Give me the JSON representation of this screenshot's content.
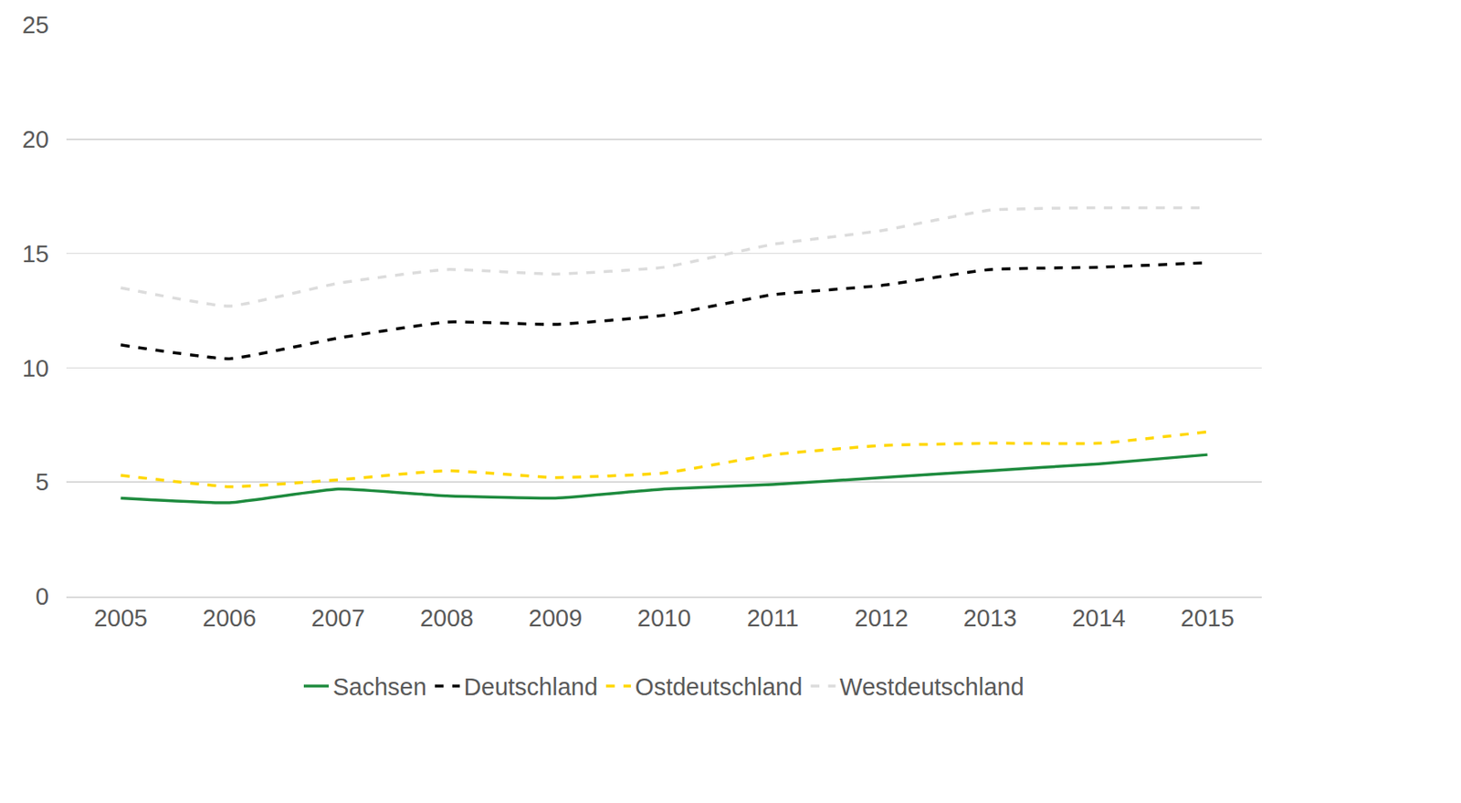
{
  "chart_data": {
    "type": "line",
    "categories": [
      "2005",
      "2006",
      "2007",
      "2008",
      "2009",
      "2010",
      "2011",
      "2012",
      "2013",
      "2014",
      "2015"
    ],
    "series": [
      {
        "name": "Sachsen",
        "color": "#1e8b3e",
        "line_style": "solid",
        "values": [
          4.3,
          4.1,
          4.7,
          4.4,
          4.3,
          4.7,
          4.9,
          5.2,
          5.5,
          5.8,
          6.2
        ]
      },
      {
        "name": "Deutschland",
        "color": "#000000",
        "line_style": "dashed",
        "values": [
          11.0,
          10.4,
          11.3,
          12.0,
          11.9,
          12.3,
          13.2,
          13.6,
          14.3,
          14.4,
          14.6
        ]
      },
      {
        "name": "Ostdeutschland",
        "color": "#ffd700",
        "line_style": "dashed",
        "values": [
          5.3,
          4.8,
          5.1,
          5.5,
          5.2,
          5.4,
          6.2,
          6.6,
          6.7,
          6.7,
          7.2
        ]
      },
      {
        "name": "Westdeutschland",
        "color": "#dcdcdc",
        "line_style": "dashed",
        "values": [
          13.5,
          12.7,
          13.7,
          14.3,
          14.1,
          14.4,
          15.4,
          16.0,
          16.9,
          17.0,
          17.0
        ]
      }
    ],
    "ylim": [
      0,
      25
    ],
    "yticks": [
      0,
      5,
      10,
      15,
      20,
      25
    ],
    "grid": true,
    "legend": "bottom"
  }
}
